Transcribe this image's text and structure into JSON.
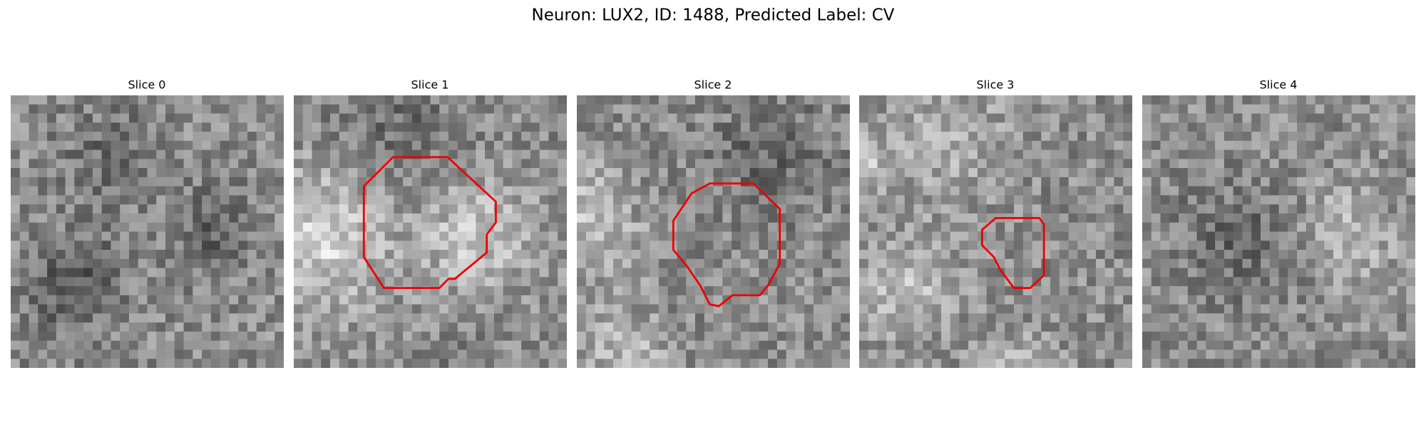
{
  "figure": {
    "title": "Neuron: LUX2, ID: 1488, Predicted Label: CV",
    "panels": [
      {
        "title": "Slice 0"
      },
      {
        "title": "Slice 1"
      },
      {
        "title": "Slice 2"
      },
      {
        "title": "Slice 3"
      },
      {
        "title": "Slice 4"
      }
    ]
  }
}
